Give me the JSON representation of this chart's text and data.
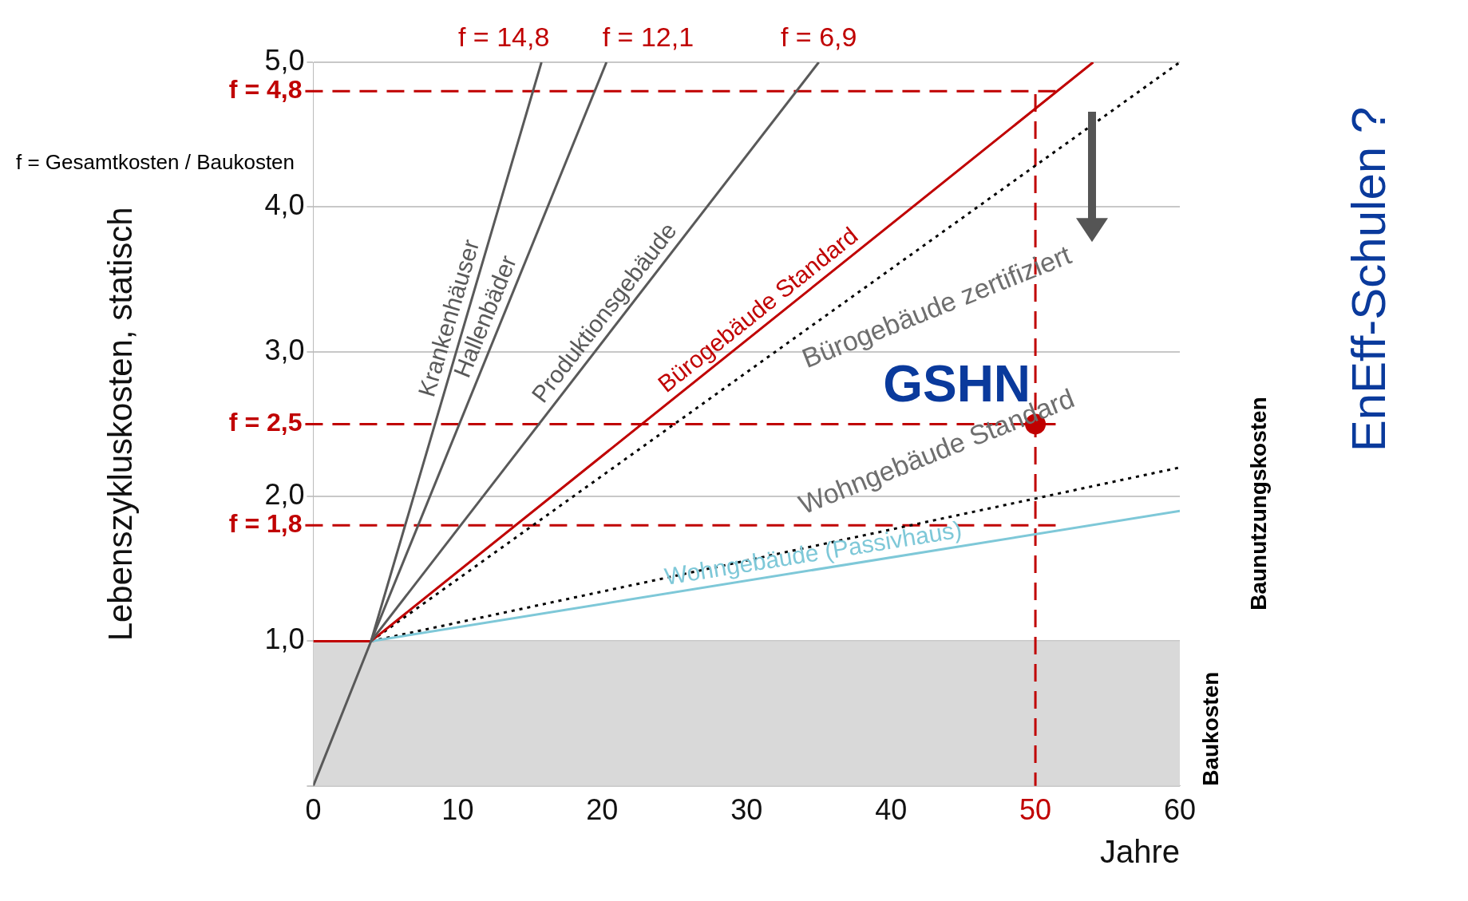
{
  "chart_data": {
    "type": "line",
    "xlabel": "Jahre",
    "ylabel": "Lebenszykluskosten, statisch",
    "xlim": [
      0,
      60
    ],
    "xticks": [
      0,
      10,
      20,
      30,
      40,
      50,
      60
    ],
    "ylim": [
      0,
      5
    ],
    "yticks": [
      {
        "value": 0,
        "label": null
      },
      {
        "value": 1,
        "label": "1,0"
      },
      {
        "value": 2,
        "label": "2,0"
      },
      {
        "value": 3,
        "label": "3,0"
      },
      {
        "value": 4,
        "label": "4,0"
      },
      {
        "value": 5,
        "label": "5,0"
      }
    ],
    "grid": "y",
    "legend": false,
    "series": [
      {
        "name": "Krankenhäuser",
        "color": "#595959",
        "x": [
          0,
          4,
          15.8
        ],
        "values": [
          0,
          1,
          5
        ]
      },
      {
        "name": "Hallenbäder",
        "color": "#595959",
        "x": [
          4,
          20.3
        ],
        "values": [
          1,
          5
        ]
      },
      {
        "name": "Produktionsgebäude",
        "color": "#595959",
        "x": [
          4,
          35
        ],
        "values": [
          1,
          5
        ]
      },
      {
        "name": "Bürogebäude Standard",
        "color": "#c00000",
        "x": [
          0,
          4,
          54
        ],
        "values": [
          1,
          1,
          5
        ]
      },
      {
        "name": "Wohngebäude (Passivhaus)",
        "color": "#7ec8d8",
        "x": [
          4,
          60
        ],
        "values": [
          1,
          1.9
        ]
      },
      {
        "color": "#000000",
        "x": [
          4,
          60
        ],
        "values": [
          1,
          5
        ],
        "line_style": "dotted"
      },
      {
        "color": "#000000",
        "x": [
          4,
          60
        ],
        "values": [
          1,
          2.2
        ],
        "line_style": "dotted"
      },
      {
        "name": "GSHN",
        "type": "scatter",
        "color": "#c00000",
        "x": [
          50
        ],
        "values": [
          2.5
        ],
        "marker": "circle"
      }
    ],
    "ref_lines": [
      {
        "axis": "y",
        "value": 4.8,
        "label": "f = 4,8",
        "color": "#c00000",
        "line_style": "dashed"
      },
      {
        "axis": "y",
        "value": 2.5,
        "label": "f = 2,5",
        "color": "#c00000",
        "line_style": "dashed"
      },
      {
        "axis": "y",
        "value": 1.8,
        "label": "f = 1,8",
        "color": "#c00000",
        "line_style": "dashed"
      },
      {
        "axis": "x",
        "value": 50,
        "color": "#c00000",
        "line_style": "dashed"
      }
    ],
    "bands": [
      {
        "axis": "y",
        "from": 0,
        "to": 1,
        "color": "#d9d9d9"
      }
    ],
    "annotations": [
      {
        "text": "f = 14,8",
        "x": 15.8,
        "y": 5
      },
      {
        "text": "f = 12,1",
        "x": 20.3,
        "y": 5
      },
      {
        "text": "f = 6,9",
        "x": 35,
        "y": 5
      },
      "f = Gesamtkosten / Baukosten",
      "Bürogebäude zertifiziert",
      "Wohngebäude Standard",
      "Baukosten",
      "Baunutzungskosten",
      "EnEff-Schulen ?"
    ]
  }
}
